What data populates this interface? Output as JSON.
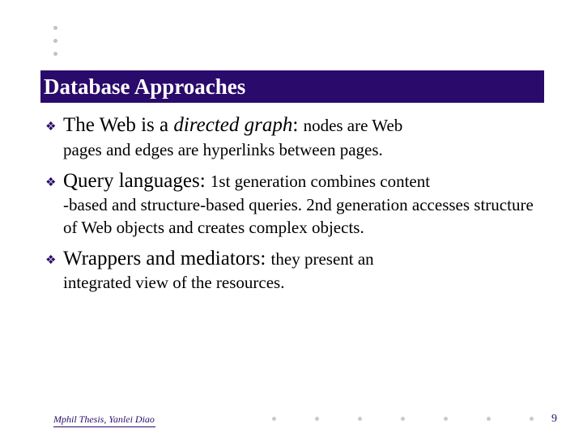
{
  "colors": {
    "title_bg": "#2a0a6b",
    "title_text": "#ffffff",
    "body_text": "#000000",
    "accent": "#2a0a6b",
    "dot": "#c8c8d4",
    "background": "#ffffff"
  },
  "typography": {
    "font_family": "Times New Roman",
    "title_fontsize_pt": 20,
    "lead_fontsize_pt": 19,
    "tail_fontsize_pt": 16,
    "footer_fontsize_pt": 9
  },
  "title": "Database Approaches",
  "bullets": [
    {
      "lead_pre": "The Web is a ",
      "lead_italic": "directed graph",
      "lead_post": ": ",
      "tail_inline": "nodes are Web",
      "cont": "pages and edges are hyperlinks between pages."
    },
    {
      "lead_pre": "Query languages: ",
      "lead_italic": "",
      "lead_post": "",
      "tail_inline": "1st generation combines content",
      "cont": "-based and structure-based queries. 2nd generation accesses structure of Web objects and creates complex objects."
    },
    {
      "lead_pre": "Wrappers and mediators: ",
      "lead_italic": "",
      "lead_post": "",
      "tail_inline": "they present an",
      "cont": "integrated view of the resources."
    }
  ],
  "footer": {
    "text": "Mphil Thesis, Yanlei Diao",
    "page": "9"
  }
}
